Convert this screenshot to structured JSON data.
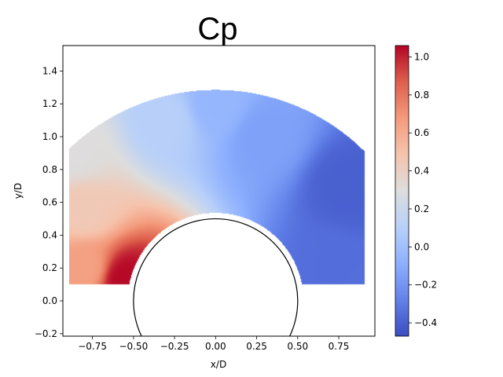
{
  "chart_data": {
    "type": "heatmap",
    "title": "Cp",
    "xlabel": "x/D",
    "ylabel": "y/D",
    "xlim": [
      -0.93,
      0.97
    ],
    "ylim": [
      -0.215,
      1.555
    ],
    "xticks": [
      "−0.75",
      "−0.50",
      "−0.25",
      "0.00",
      "0.25",
      "0.50",
      "0.75"
    ],
    "xtick_values": [
      -0.75,
      -0.5,
      -0.25,
      0.0,
      0.25,
      0.5,
      0.75
    ],
    "yticks": [
      "−0.2",
      "0.0",
      "0.2",
      "0.4",
      "0.6",
      "0.8",
      "1.0",
      "1.2",
      "1.4"
    ],
    "ytick_values": [
      -0.2,
      0.0,
      0.2,
      0.4,
      0.6,
      0.8,
      1.0,
      1.2,
      1.4
    ],
    "colormap": "coolwarm",
    "colorbar": {
      "range": [
        -0.47,
        1.06
      ],
      "ticks": [
        "−0.4",
        "−0.2",
        "0.0",
        "0.2",
        "0.4",
        "0.6",
        "0.8",
        "1.0"
      ],
      "tick_values": [
        -0.4,
        -0.2,
        0.0,
        0.2,
        0.4,
        0.6,
        0.8,
        1.0
      ]
    },
    "cylinder": {
      "center": [
        0,
        0
      ],
      "radius_D": 0.5
    },
    "field_domain": {
      "x_range": [
        -0.89,
        0.91
      ],
      "y_min": 0.1,
      "outer_radius_D": 1.285,
      "inner_radius_D": 0.535
    },
    "field_samples": [
      {
        "x": -0.55,
        "y": 0.13,
        "cp": 1.05
      },
      {
        "x": -0.8,
        "y": 0.2,
        "cp": 0.65
      },
      {
        "x": -0.8,
        "y": 0.55,
        "cp": 0.45
      },
      {
        "x": -0.85,
        "y": 0.9,
        "cp": 0.3
      },
      {
        "x": -0.3,
        "y": 1.1,
        "cp": 0.1
      },
      {
        "x": 0.0,
        "y": 1.2,
        "cp": -0.05
      },
      {
        "x": 0.3,
        "y": 1.0,
        "cp": -0.15
      },
      {
        "x": 0.8,
        "y": 0.7,
        "cp": -0.4
      },
      {
        "x": 0.7,
        "y": 0.2,
        "cp": -0.35
      }
    ]
  }
}
